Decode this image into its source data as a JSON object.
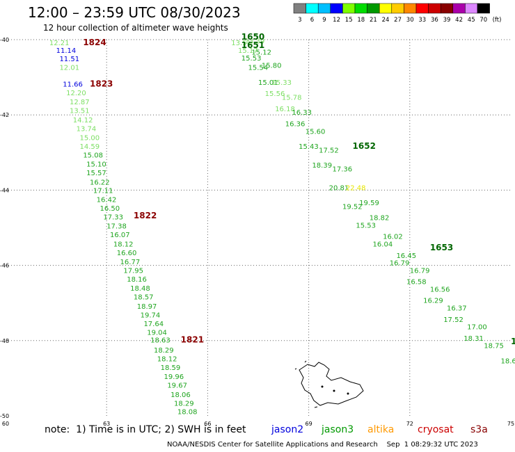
{
  "header": {
    "title": "12:00 – 23:59 UTC 08/30/2023",
    "subtitle": "12 hour collection of altimeter wave heights"
  },
  "legend": {
    "unit": "(ft)",
    "bins": [
      {
        "label": "3",
        "color": "#808080"
      },
      {
        "label": "6",
        "color": "#00ffff"
      },
      {
        "label": "9",
        "color": "#00bfff"
      },
      {
        "label": "12",
        "color": "#0000ff"
      },
      {
        "label": "15",
        "color": "#7fff00"
      },
      {
        "label": "18",
        "color": "#00dd00"
      },
      {
        "label": "21",
        "color": "#009900"
      },
      {
        "label": "24",
        "color": "#ffff00"
      },
      {
        "label": "27",
        "color": "#ffcc00"
      },
      {
        "label": "30",
        "color": "#ff8800"
      },
      {
        "label": "33",
        "color": "#ff0000"
      },
      {
        "label": "36",
        "color": "#cc0000"
      },
      {
        "label": "39",
        "color": "#880000"
      },
      {
        "label": "42",
        "color": "#aa00aa"
      },
      {
        "label": "45",
        "color": "#dd88ff"
      },
      {
        "label": "70",
        "color": "#000000"
      }
    ]
  },
  "notes": {
    "prefix": "note:  1) Time is in UTC; 2) SWH is in feet",
    "satellites": [
      {
        "name": "jason2",
        "color": "#0000dd"
      },
      {
        "name": "jason3",
        "color": "#009900"
      },
      {
        "name": "altika",
        "color": "#ff9900"
      },
      {
        "name": "cryosat",
        "color": "#cc0000"
      },
      {
        "name": "s3a",
        "color": "#880000"
      }
    ]
  },
  "footer": "NOAA/NESDIS Center for Satellite Applications and Research    Sep  1 08:29:32 UTC 2023",
  "chart_data": {
    "type": "scatter",
    "title": "12:00 – 23:59 UTC 08/30/2023",
    "xlim": [
      60,
      75
    ],
    "ylim": [
      -50,
      -40
    ],
    "x_ticks": [
      "60",
      "63",
      "66",
      "69",
      "72",
      "75"
    ],
    "y_ticks": [
      "-40",
      "-42",
      "-44",
      "-46",
      "-48",
      "-50"
    ],
    "grid": true,
    "colors": {
      "swh_blue": "#0000dd",
      "swh_light_green": "#7ddf64",
      "swh_green": "#1fa51f",
      "swh_dark_green": "#0a7a0a",
      "swh_yellow": "#e6e600",
      "time_red": "#8b0000",
      "land": "#000000"
    },
    "time_labels": [
      {
        "x": 62.3,
        "y": -40.15,
        "text": "1824",
        "color": "#8b0000"
      },
      {
        "x": 62.5,
        "y": -41.25,
        "text": "1823",
        "color": "#8b0000"
      },
      {
        "x": 63.8,
        "y": -44.75,
        "text": "1822",
        "color": "#8b0000"
      },
      {
        "x": 65.2,
        "y": -48.05,
        "text": "1821",
        "color": "#8b0000"
      },
      {
        "x": 67.0,
        "y": -40.0,
        "text": "1650",
        "color": "#006600"
      },
      {
        "x": 67.0,
        "y": -40.22,
        "text": "1651",
        "color": "#006600"
      },
      {
        "x": 70.3,
        "y": -42.9,
        "text": "1652",
        "color": "#006600"
      },
      {
        "x": 72.6,
        "y": -45.6,
        "text": "1653",
        "color": "#006600"
      },
      {
        "x": 75.0,
        "y": -48.1,
        "text": "1",
        "color": "#006600"
      }
    ],
    "series": [
      {
        "name": "1824",
        "points": [
          {
            "x": 61.3,
            "y": -40.15,
            "swh": "12.21",
            "color": "#7ddf64"
          },
          {
            "x": 61.5,
            "y": -40.35,
            "swh": "11.14",
            "color": "#0000dd"
          },
          {
            "x": 61.6,
            "y": -40.57,
            "swh": "11.51",
            "color": "#0000dd"
          },
          {
            "x": 61.6,
            "y": -40.8,
            "swh": "12.01",
            "color": "#7ddf64"
          },
          {
            "x": 61.7,
            "y": -41.25,
            "swh": "11.66",
            "color": "#0000dd"
          },
          {
            "x": 61.8,
            "y": -41.48,
            "swh": "12.20",
            "color": "#7ddf64"
          },
          {
            "x": 61.9,
            "y": -41.72,
            "swh": "12.87",
            "color": "#7ddf64"
          },
          {
            "x": 61.9,
            "y": -41.95,
            "swh": "13.51",
            "color": "#7ddf64"
          },
          {
            "x": 62.0,
            "y": -42.2,
            "swh": "14.12",
            "color": "#7ddf64"
          },
          {
            "x": 62.1,
            "y": -42.43,
            "swh": "13.74",
            "color": "#7ddf64"
          },
          {
            "x": 62.2,
            "y": -42.67,
            "swh": "15.00",
            "color": "#7ddf64"
          },
          {
            "x": 62.2,
            "y": -42.9,
            "swh": "14.59",
            "color": "#7ddf64"
          },
          {
            "x": 62.3,
            "y": -43.13,
            "swh": "15.08",
            "color": "#1fa51f"
          },
          {
            "x": 62.4,
            "y": -43.37,
            "swh": "15.10",
            "color": "#1fa51f"
          },
          {
            "x": 62.4,
            "y": -43.6,
            "swh": "15.57",
            "color": "#1fa51f"
          },
          {
            "x": 62.5,
            "y": -43.85,
            "swh": "16.22",
            "color": "#1fa51f"
          },
          {
            "x": 62.6,
            "y": -44.08,
            "swh": "17.11",
            "color": "#1fa51f"
          },
          {
            "x": 62.7,
            "y": -44.32,
            "swh": "16.42",
            "color": "#1fa51f"
          },
          {
            "x": 62.8,
            "y": -44.55,
            "swh": "16.50",
            "color": "#1fa51f"
          },
          {
            "x": 62.9,
            "y": -44.78,
            "swh": "17.33",
            "color": "#1fa51f"
          },
          {
            "x": 63.0,
            "y": -45.02,
            "swh": "17.38",
            "color": "#1fa51f"
          },
          {
            "x": 63.1,
            "y": -45.25,
            "swh": "16.07",
            "color": "#1fa51f"
          },
          {
            "x": 63.2,
            "y": -45.5,
            "swh": "18.12",
            "color": "#1fa51f"
          },
          {
            "x": 63.3,
            "y": -45.73,
            "swh": "16.60",
            "color": "#1fa51f"
          },
          {
            "x": 63.4,
            "y": -45.97,
            "swh": "16.77",
            "color": "#1fa51f"
          },
          {
            "x": 63.5,
            "y": -46.2,
            "swh": "17.95",
            "color": "#1fa51f"
          },
          {
            "x": 63.6,
            "y": -46.43,
            "swh": "18.16",
            "color": "#1fa51f"
          },
          {
            "x": 63.7,
            "y": -46.67,
            "swh": "18.48",
            "color": "#1fa51f"
          },
          {
            "x": 63.8,
            "y": -46.9,
            "swh": "18.57",
            "color": "#1fa51f"
          },
          {
            "x": 63.9,
            "y": -47.15,
            "swh": "18.97",
            "color": "#1fa51f"
          },
          {
            "x": 64.0,
            "y": -47.38,
            "swh": "19.74",
            "color": "#1fa51f"
          },
          {
            "x": 64.1,
            "y": -47.62,
            "swh": "17.64",
            "color": "#1fa51f"
          },
          {
            "x": 64.2,
            "y": -47.85,
            "swh": "19.04",
            "color": "#1fa51f"
          },
          {
            "x": 64.3,
            "y": -48.05,
            "swh": "18.63",
            "color": "#1fa51f"
          },
          {
            "x": 64.4,
            "y": -48.32,
            "swh": "18.29",
            "color": "#1fa51f"
          },
          {
            "x": 64.5,
            "y": -48.55,
            "swh": "18.12",
            "color": "#1fa51f"
          },
          {
            "x": 64.6,
            "y": -48.78,
            "swh": "18.59",
            "color": "#1fa51f"
          },
          {
            "x": 64.7,
            "y": -49.02,
            "swh": "19.96",
            "color": "#1fa51f"
          },
          {
            "x": 64.8,
            "y": -49.25,
            "swh": "19.67",
            "color": "#1fa51f"
          },
          {
            "x": 64.9,
            "y": -49.5,
            "swh": "18.06",
            "color": "#1fa51f"
          },
          {
            "x": 65.0,
            "y": -49.73,
            "swh": "18.29",
            "color": "#1fa51f"
          },
          {
            "x": 65.1,
            "y": -49.95,
            "swh": "18.08",
            "color": "#1fa51f"
          }
        ]
      },
      {
        "name": "1650",
        "points": [
          {
            "x": 66.7,
            "y": -40.15,
            "swh": "13.51",
            "color": "#7ddf64"
          },
          {
            "x": 66.9,
            "y": -40.35,
            "swh": "15.17",
            "color": "#7ddf64"
          },
          {
            "x": 67.0,
            "y": -40.55,
            "swh": "15.53",
            "color": "#1fa51f"
          },
          {
            "x": 67.2,
            "y": -40.8,
            "swh": "15.54",
            "color": "#1fa51f"
          },
          {
            "x": 67.5,
            "y": -41.2,
            "swh": "15.01",
            "color": "#1fa51f"
          },
          {
            "x": 67.7,
            "y": -41.5,
            "swh": "15.56",
            "color": "#7ddf64"
          },
          {
            "x": 68.0,
            "y": -41.9,
            "swh": "16.18",
            "color": "#7ddf64"
          },
          {
            "x": 68.3,
            "y": -42.3,
            "swh": "16.36",
            "color": "#1fa51f"
          },
          {
            "x": 68.7,
            "y": -42.9,
            "swh": "15.43",
            "color": "#1fa51f"
          },
          {
            "x": 69.1,
            "y": -43.4,
            "swh": "18.39",
            "color": "#1fa51f"
          },
          {
            "x": 69.6,
            "y": -44.0,
            "swh": "20.81",
            "color": "#1fa51f"
          },
          {
            "x": 70.0,
            "y": -44.5,
            "swh": "19.52",
            "color": "#1fa51f"
          },
          {
            "x": 70.4,
            "y": -45.0,
            "swh": "15.53",
            "color": "#1fa51f"
          },
          {
            "x": 70.9,
            "y": -45.5,
            "swh": "16.04",
            "color": "#1fa51f"
          },
          {
            "x": 71.4,
            "y": -46.0,
            "swh": "16.79",
            "color": "#1fa51f"
          },
          {
            "x": 71.9,
            "y": -46.5,
            "swh": "16.58",
            "color": "#1fa51f"
          },
          {
            "x": 72.4,
            "y": -47.0,
            "swh": "16.29",
            "color": "#1fa51f"
          },
          {
            "x": 73.0,
            "y": -47.5,
            "swh": "17.52",
            "color": "#1fa51f"
          },
          {
            "x": 73.6,
            "y": -48.0,
            "swh": "18.31",
            "color": "#1fa51f"
          }
        ]
      },
      {
        "name": "1651",
        "points": [
          {
            "x": 67.1,
            "y": -40.1,
            "swh": "13.39",
            "color": "#7ddf64"
          },
          {
            "x": 67.3,
            "y": -40.4,
            "swh": "15.12",
            "color": "#1fa51f"
          },
          {
            "x": 67.6,
            "y": -40.75,
            "swh": "15.80",
            "color": "#1fa51f"
          },
          {
            "x": 67.9,
            "y": -41.2,
            "swh": "15.33",
            "color": "#7ddf64"
          },
          {
            "x": 68.2,
            "y": -41.6,
            "swh": "15.78",
            "color": "#7ddf64"
          },
          {
            "x": 68.5,
            "y": -42.0,
            "swh": "16.33",
            "color": "#1fa51f"
          },
          {
            "x": 68.9,
            "y": -42.5,
            "swh": "15.60",
            "color": "#1fa51f"
          },
          {
            "x": 69.3,
            "y": -43.0,
            "swh": "17.52",
            "color": "#1fa51f"
          },
          {
            "x": 69.7,
            "y": -43.5,
            "swh": "17.36",
            "color": "#1fa51f"
          },
          {
            "x": 70.1,
            "y": -44.0,
            "swh": "22.48",
            "color": "#e6e600"
          },
          {
            "x": 70.5,
            "y": -44.4,
            "swh": "19.59",
            "color": "#1fa51f"
          },
          {
            "x": 70.8,
            "y": -44.8,
            "swh": "18.82",
            "color": "#1fa51f"
          },
          {
            "x": 71.2,
            "y": -45.3,
            "swh": "16.02",
            "color": "#1fa51f"
          },
          {
            "x": 71.6,
            "y": -45.8,
            "swh": "16.45",
            "color": "#1fa51f"
          },
          {
            "x": 72.0,
            "y": -46.2,
            "swh": "16.79",
            "color": "#1fa51f"
          },
          {
            "x": 72.6,
            "y": -46.7,
            "swh": "16.56",
            "color": "#1fa51f"
          },
          {
            "x": 73.1,
            "y": -47.2,
            "swh": "16.37",
            "color": "#1fa51f"
          },
          {
            "x": 73.7,
            "y": -47.7,
            "swh": "17.00",
            "color": "#1fa51f"
          },
          {
            "x": 74.2,
            "y": -48.2,
            "swh": "18.75",
            "color": "#1fa51f"
          },
          {
            "x": 74.7,
            "y": -48.6,
            "swh": "18.60",
            "color": "#1fa51f"
          }
        ]
      }
    ]
  }
}
